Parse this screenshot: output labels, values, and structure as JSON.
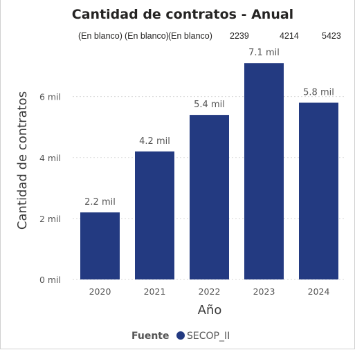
{
  "chart_data": {
    "type": "bar",
    "title": "Cantidad de contratos - Anual",
    "xlabel": "Año",
    "ylabel": "Cantidad de contratos",
    "categories": [
      "2020",
      "2021",
      "2022",
      "2023",
      "2024"
    ],
    "series": [
      {
        "name": "SECOP_II",
        "values": [
          2200,
          4200,
          5400,
          7100,
          5800
        ],
        "color": "#233a81"
      }
    ],
    "data_labels": [
      "2.2 mil",
      "4.2 mil",
      "5.4 mil",
      "7.1 mil",
      "5.8 mil"
    ],
    "y_ticks": [
      0,
      2000,
      4000,
      6000
    ],
    "y_tick_labels": [
      "0 mil",
      "2 mil",
      "4 mil",
      "6 mil"
    ],
    "ylim": [
      0,
      7400
    ],
    "grid": true,
    "legend": {
      "title": "Fuente",
      "position": "bottom-center"
    },
    "top_labels": [
      "(En blanco)",
      "(En blanco)",
      "(En blanco)",
      "2239",
      "4214",
      "5423"
    ]
  }
}
